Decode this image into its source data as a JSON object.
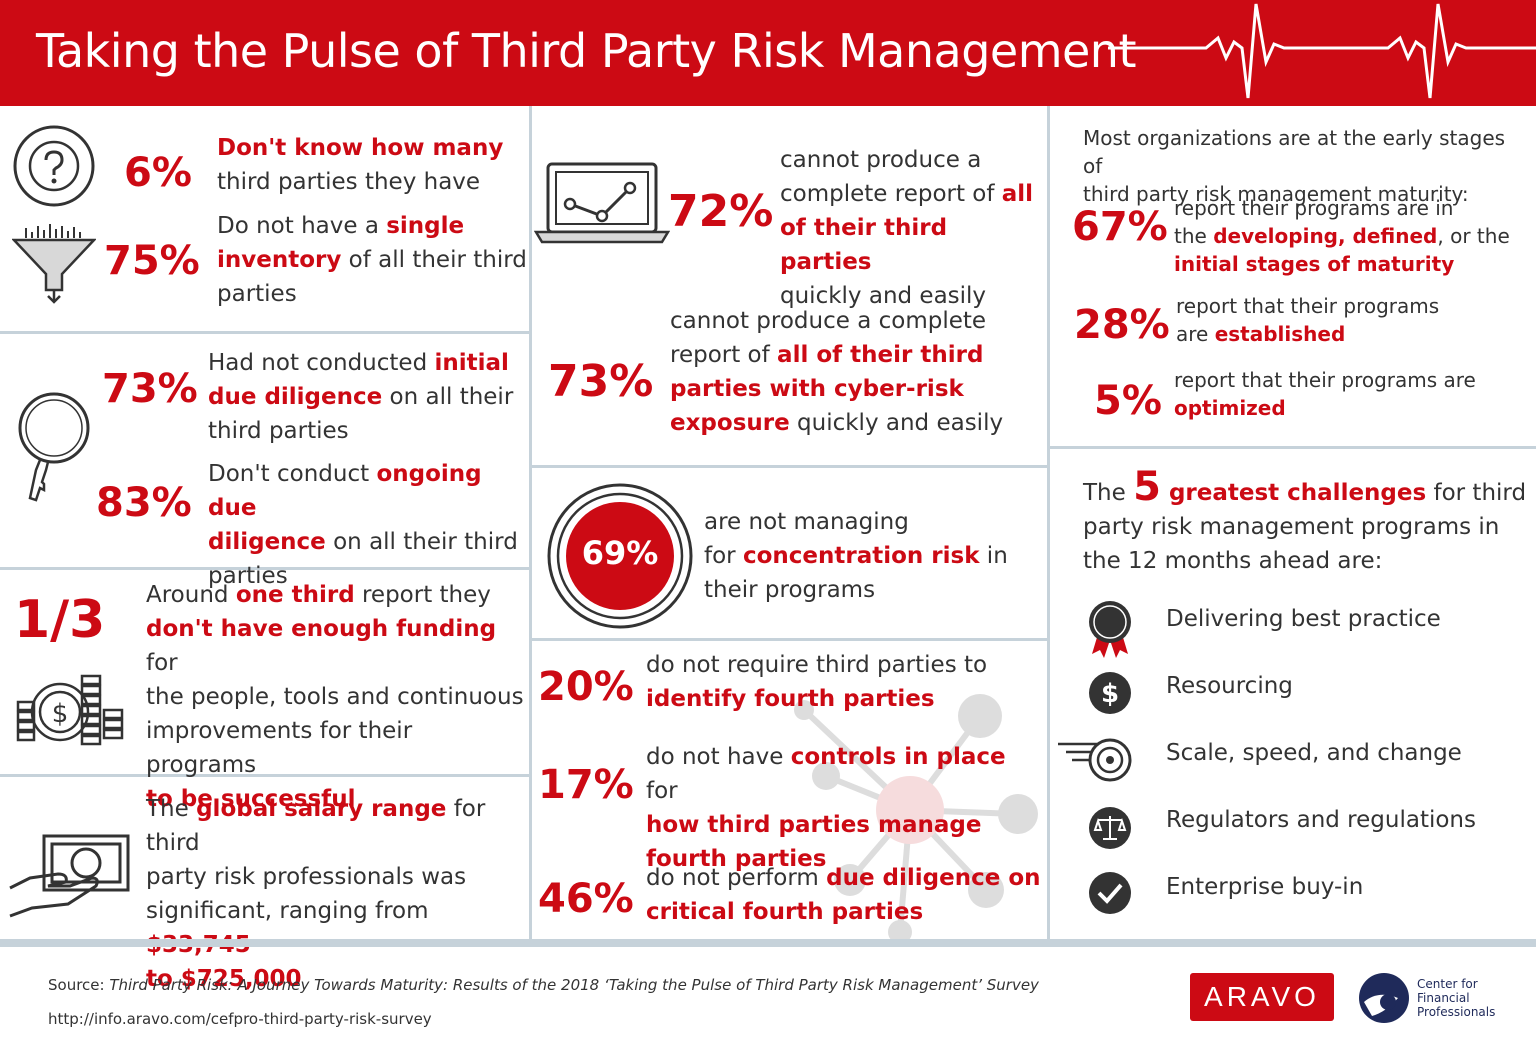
{
  "header": {
    "title": "Taking the Pulse of Third Party Risk Management"
  },
  "col1": {
    "s1": {
      "pct": "6%",
      "hl": "Don't know how many",
      "rest": "third parties they have"
    },
    "s2": {
      "pct": "75%",
      "t1": "Do not have a ",
      "hl1": "single",
      "hl2": "inventory",
      "t2": " of all their third",
      "t3": "parties"
    },
    "s3": {
      "pct": "73%",
      "t1": "Had not conducted ",
      "hl1": "initial",
      "hl2": "due diligence",
      "t2": " on all their",
      "t3": "third parties"
    },
    "s4": {
      "pct": "83%",
      "t1": "Don't conduct ",
      "hl1": "ongoing due",
      "hl2": "diligence",
      "t2": " on all their third",
      "t3": "parties"
    },
    "s5": {
      "pct": "1/3",
      "t1": "Around ",
      "hl1": "one third",
      "t2": " report they",
      "hl2": "don't have enough funding",
      "t3": " for",
      "t4": "the people, tools and continuous",
      "t5": "improvements for their programs",
      "hl3": "to be successful"
    },
    "s6": {
      "t1": "The ",
      "hl1": "global salary range",
      "t2": " for third",
      "t3": "party risk professionals was",
      "t4": "significant, ranging from ",
      "hl2": "$33,745",
      "hl3": "to $725,000"
    }
  },
  "col2": {
    "s1": {
      "pct": "72%",
      "t1": "cannot produce a",
      "t2": "complete report of ",
      "hl1": "all",
      "hl2": "of their third parties",
      "t3": "quickly and easily"
    },
    "s2": {
      "pct": "73%",
      "t1": "cannot produce a complete",
      "t2": "report of ",
      "hl1": "all of their third",
      "hl2": "parties with cyber-risk",
      "hl3": "exposure",
      "t3": " quickly and easily"
    },
    "s3": {
      "pct": "69%",
      "t1": "are not managing",
      "t2": "for ",
      "hl1": "concentration risk",
      "t3": " in",
      "t4": "their programs"
    },
    "s4": {
      "pct": "20%",
      "t1": "do not require third parties to",
      "hl1": "identify fourth parties"
    },
    "s5": {
      "pct": "17%",
      "t1": "do not have ",
      "hl1": "controls in place",
      "t2": " for",
      "hl2": "how third parties manage",
      "hl3": "fourth parties"
    },
    "s6": {
      "pct": "46%",
      "t1": "do not perform ",
      "hl1": "due diligence on",
      "hl2": "critical fourth parties"
    }
  },
  "col3": {
    "intro1": "Most organizations are at the early stages of",
    "intro2": "third party risk management maturity:",
    "m1": {
      "pct": "67%",
      "t1": "report their programs are in",
      "t2": "the ",
      "hl1": "developing, defined",
      "t3": ", or the",
      "hl2": "initial stages of maturity"
    },
    "m2": {
      "pct": "28%",
      "t1": "report that their programs",
      "t2": "are ",
      "hl1": "established"
    },
    "m3": {
      "pct": "5%",
      "t1": "report that their programs are",
      "hl1": "optimized"
    },
    "challenges": {
      "t1": "The ",
      "num": "5",
      "hl1": " greatest challenges",
      "t2": " for third",
      "t3": "party risk management programs in",
      "t4": "the 12 months ahead are:",
      "items": [
        {
          "label": "Delivering best practice",
          "icon": "award-ribbon-icon"
        },
        {
          "label": "Resourcing",
          "icon": "dollar-coin-icon"
        },
        {
          "label": "Scale, speed, and change",
          "icon": "speeding-disc-icon"
        },
        {
          "label": "Regulators and regulations",
          "icon": "scales-icon"
        },
        {
          "label": "Enterprise buy-in",
          "icon": "checkmark-icon"
        }
      ]
    }
  },
  "footer": {
    "source_label": "Source: ",
    "source_title": "Third Party Risk: A Journey Towards Maturity: Results of the 2018 ‘Taking the Pulse of Third Party Risk Management’ Survey",
    "url": "http://info.aravo.com/cefpro-third-party-risk-survey",
    "aravo": "ARAVO",
    "cfp1": "Center for",
    "cfp2": "Financial",
    "cfp3": "Professionals"
  },
  "colors": {
    "accent": "#cc0a14",
    "divider": "#c6d2da",
    "text": "#333333"
  }
}
